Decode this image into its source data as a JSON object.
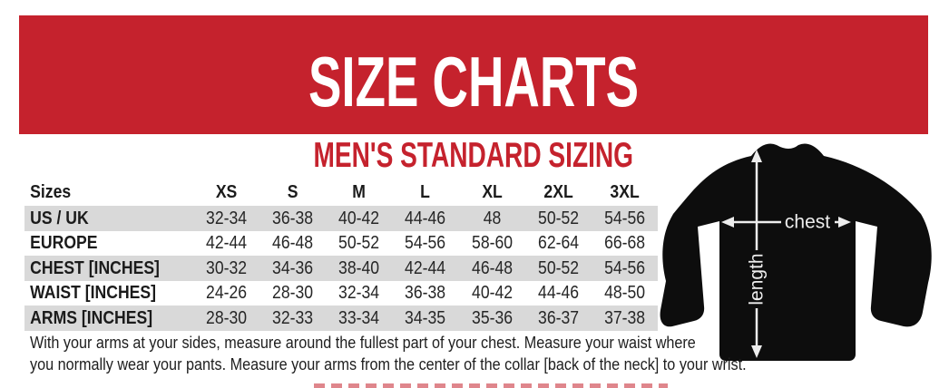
{
  "banner": {
    "title": "SIZE CHARTS",
    "bg_color": "#c5222d",
    "text_color": "#ffffff"
  },
  "section": {
    "title": "MEN'S STANDARD SIZING",
    "color": "#c5222d"
  },
  "table": {
    "stripe_color": "#d9d9d9",
    "header": [
      "Sizes",
      "XS",
      "S",
      "M",
      "L",
      "XL",
      "2XL",
      "3XL"
    ],
    "rows": [
      {
        "label": "US / UK",
        "values": [
          "32-34",
          "36-38",
          "40-42",
          "44-46",
          "48",
          "50-52",
          "54-56"
        ]
      },
      {
        "label": "EUROPE",
        "values": [
          "42-44",
          "46-48",
          "50-52",
          "54-56",
          "58-60",
          "62-64",
          "66-68"
        ]
      },
      {
        "label": "CHEST [INCHES]",
        "values": [
          "30-32",
          "34-36",
          "38-40",
          "42-44",
          "46-48",
          "50-52",
          "54-56"
        ]
      },
      {
        "label": "WAIST [INCHES]",
        "values": [
          "24-26",
          "28-30",
          "32-34",
          "36-38",
          "40-42",
          "44-46",
          "48-50"
        ]
      },
      {
        "label": "ARMS [INCHES]",
        "values": [
          "28-30",
          "32-33",
          "33-34",
          "34-35",
          "35-36",
          "36-37",
          "37-38"
        ]
      }
    ]
  },
  "diagram": {
    "chest_label": "chest",
    "length_label": "length"
  },
  "note": {
    "line1": "With your arms at your sides, measure around the fullest part of your chest. Measure your waist where",
    "line2": "you normally wear your pants. Measure your arms from the center of the collar [back of the neck] to your wrist."
  }
}
